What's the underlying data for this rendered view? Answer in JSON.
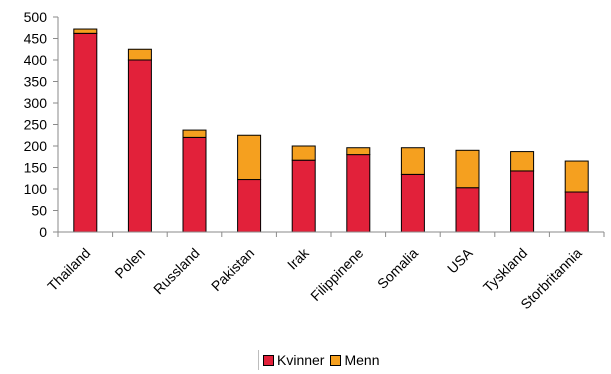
{
  "chart_data": {
    "type": "bar",
    "stacked": true,
    "categories": [
      "Thailand",
      "Polen",
      "Russland",
      "Pakistan",
      "Irak",
      "Filippinene",
      "Somalia",
      "USA",
      "Tyskland",
      "Storbritannia"
    ],
    "series": [
      {
        "name": "Kvinner",
        "color": "#e2213a",
        "values": [
          462,
          400,
          220,
          122,
          167,
          180,
          134,
          103,
          142,
          93
        ]
      },
      {
        "name": "Menn",
        "color": "#f5a01f",
        "values": [
          10,
          25,
          17,
          103,
          33,
          16,
          62,
          87,
          45,
          72
        ]
      }
    ],
    "ylim": [
      0,
      500
    ],
    "yticks": [
      "0",
      "50",
      "100",
      "150",
      "200",
      "250",
      "300",
      "350",
      "400",
      "450",
      "500"
    ],
    "grid": false,
    "legend_position": "bottom",
    "colors": {
      "axis": "#8a8a8a",
      "bar_outline": "#000000"
    }
  },
  "legend": {
    "items": [
      "Kvinner",
      "Menn"
    ]
  }
}
